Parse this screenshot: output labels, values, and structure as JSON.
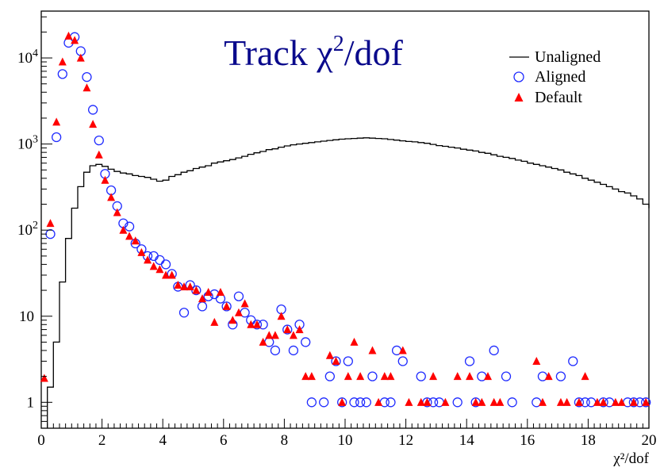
{
  "chart_data": {
    "type": "scatter",
    "title": "Track χ²/dof",
    "xlabel": "χ²/dof",
    "ylabel": "",
    "xlim": [
      0,
      20
    ],
    "ylim": [
      0.5,
      35000
    ],
    "y_scale": "log",
    "grid": false,
    "legend_position": "top-right",
    "x_ticks": [
      "0",
      "2",
      "4",
      "6",
      "8",
      "10",
      "12",
      "14",
      "16",
      "18",
      "20"
    ],
    "y_ticks": [
      {
        "value": 1,
        "base": "1",
        "exp": ""
      },
      {
        "value": 10,
        "base": "10",
        "exp": ""
      },
      {
        "value": 100,
        "base": "10",
        "exp": "2"
      },
      {
        "value": 1000,
        "base": "10",
        "exp": "3"
      },
      {
        "value": 10000,
        "base": "10",
        "exp": "4"
      }
    ],
    "colors": {
      "unaligned": "#000000",
      "aligned": "#1f2bff",
      "default": "#ff0000",
      "title": "#0a0a8c"
    },
    "series": [
      {
        "name": "Unaligned",
        "style": "histogram-line",
        "bin_width": 0.2,
        "edges_start": 0.2,
        "values": [
          1.5,
          5,
          25,
          80,
          180,
          320,
          470,
          560,
          580,
          550,
          510,
          480,
          460,
          450,
          430,
          420,
          410,
          390,
          370,
          380,
          420,
          440,
          470,
          490,
          520,
          540,
          560,
          600,
          620,
          640,
          660,
          690,
          720,
          760,
          790,
          820,
          860,
          880,
          920,
          950,
          980,
          1000,
          1020,
          1040,
          1060,
          1080,
          1100,
          1120,
          1140,
          1150,
          1160,
          1170,
          1180,
          1170,
          1160,
          1150,
          1130,
          1110,
          1090,
          1070,
          1060,
          1040,
          1020,
          990,
          960,
          940,
          920,
          900,
          870,
          850,
          830,
          800,
          780,
          750,
          720,
          700,
          680,
          650,
          630,
          600,
          580,
          560,
          540,
          520,
          500,
          470,
          450,
          430,
          400,
          380,
          360,
          340,
          320,
          300,
          280,
          270,
          250,
          230,
          200,
          180
        ]
      },
      {
        "name": "Aligned",
        "style": "open-circle",
        "points": [
          [
            0.3,
            90
          ],
          [
            0.5,
            1200
          ],
          [
            0.7,
            6500
          ],
          [
            0.9,
            15000
          ],
          [
            1.1,
            17500
          ],
          [
            1.3,
            12000
          ],
          [
            1.5,
            6000
          ],
          [
            1.7,
            2500
          ],
          [
            1.9,
            1100
          ],
          [
            2.1,
            450
          ],
          [
            2.3,
            290
          ],
          [
            2.5,
            190
          ],
          [
            2.7,
            120
          ],
          [
            2.9,
            110
          ],
          [
            3.1,
            70
          ],
          [
            3.3,
            60
          ],
          [
            3.5,
            50
          ],
          [
            3.7,
            50
          ],
          [
            3.9,
            45
          ],
          [
            4.1,
            40
          ],
          [
            4.3,
            31
          ],
          [
            4.5,
            22
          ],
          [
            4.7,
            11
          ],
          [
            4.9,
            23
          ],
          [
            5.1,
            20
          ],
          [
            5.3,
            13
          ],
          [
            5.5,
            17
          ],
          [
            5.7,
            18
          ],
          [
            5.9,
            16
          ],
          [
            6.1,
            13
          ],
          [
            6.3,
            8
          ],
          [
            6.5,
            17
          ],
          [
            6.7,
            11
          ],
          [
            6.9,
            9
          ],
          [
            7.1,
            8
          ],
          [
            7.3,
            8
          ],
          [
            7.5,
            5
          ],
          [
            7.7,
            4
          ],
          [
            7.9,
            12
          ],
          [
            8.1,
            7
          ],
          [
            8.3,
            4
          ],
          [
            8.5,
            8
          ],
          [
            8.7,
            5
          ],
          [
            8.9,
            1
          ],
          [
            9.3,
            1
          ],
          [
            9.5,
            2
          ],
          [
            9.7,
            3
          ],
          [
            9.9,
            1
          ],
          [
            10.1,
            3
          ],
          [
            10.3,
            1
          ],
          [
            10.5,
            1
          ],
          [
            10.7,
            1
          ],
          [
            10.9,
            2
          ],
          [
            11.3,
            1
          ],
          [
            11.5,
            1
          ],
          [
            11.7,
            4
          ],
          [
            11.9,
            3
          ],
          [
            12.5,
            2
          ],
          [
            12.7,
            1
          ],
          [
            12.9,
            1
          ],
          [
            13.1,
            1
          ],
          [
            13.7,
            1
          ],
          [
            14.1,
            3
          ],
          [
            14.3,
            1
          ],
          [
            14.5,
            2
          ],
          [
            14.9,
            4
          ],
          [
            15.3,
            2
          ],
          [
            15.5,
            1
          ],
          [
            16.3,
            1
          ],
          [
            16.5,
            2
          ],
          [
            17.1,
            2
          ],
          [
            17.5,
            3
          ],
          [
            17.7,
            1
          ],
          [
            17.9,
            1
          ],
          [
            18.1,
            1
          ],
          [
            18.5,
            1
          ],
          [
            18.7,
            1
          ],
          [
            19.3,
            1
          ],
          [
            19.5,
            1
          ],
          [
            19.7,
            1
          ],
          [
            19.9,
            1
          ]
        ]
      },
      {
        "name": "Default",
        "style": "filled-triangle",
        "points": [
          [
            0.1,
            1.9
          ],
          [
            0.3,
            120
          ],
          [
            0.5,
            1800
          ],
          [
            0.7,
            9000
          ],
          [
            0.9,
            18000
          ],
          [
            1.1,
            16000
          ],
          [
            1.3,
            10000
          ],
          [
            1.5,
            4500
          ],
          [
            1.7,
            1700
          ],
          [
            1.9,
            750
          ],
          [
            2.1,
            380
          ],
          [
            2.3,
            240
          ],
          [
            2.5,
            160
          ],
          [
            2.7,
            100
          ],
          [
            2.9,
            85
          ],
          [
            3.1,
            75
          ],
          [
            3.3,
            55
          ],
          [
            3.5,
            45
          ],
          [
            3.7,
            38
          ],
          [
            3.9,
            35
          ],
          [
            4.1,
            30
          ],
          [
            4.3,
            30
          ],
          [
            4.5,
            23
          ],
          [
            4.7,
            22
          ],
          [
            4.9,
            22
          ],
          [
            5.1,
            20
          ],
          [
            5.3,
            16
          ],
          [
            5.5,
            19
          ],
          [
            5.7,
            8.5
          ],
          [
            5.9,
            19
          ],
          [
            6.1,
            13
          ],
          [
            6.3,
            9
          ],
          [
            6.5,
            11
          ],
          [
            6.7,
            14
          ],
          [
            6.9,
            8
          ],
          [
            7.1,
            8
          ],
          [
            7.3,
            5
          ],
          [
            7.5,
            6
          ],
          [
            7.7,
            6
          ],
          [
            7.9,
            10
          ],
          [
            8.1,
            7
          ],
          [
            8.3,
            6
          ],
          [
            8.5,
            7
          ],
          [
            8.7,
            2
          ],
          [
            8.9,
            2
          ],
          [
            9.5,
            3.5
          ],
          [
            9.7,
            3
          ],
          [
            9.9,
            1
          ],
          [
            10.1,
            2
          ],
          [
            10.3,
            5
          ],
          [
            10.5,
            2
          ],
          [
            10.9,
            4
          ],
          [
            11.1,
            1
          ],
          [
            11.3,
            2
          ],
          [
            11.5,
            2
          ],
          [
            11.9,
            4
          ],
          [
            12.1,
            1
          ],
          [
            12.5,
            1
          ],
          [
            12.7,
            1
          ],
          [
            12.9,
            2
          ],
          [
            13.3,
            1
          ],
          [
            13.7,
            2
          ],
          [
            14.1,
            2
          ],
          [
            14.3,
            1
          ],
          [
            14.5,
            1
          ],
          [
            14.7,
            2
          ],
          [
            14.9,
            1
          ],
          [
            15.1,
            1
          ],
          [
            16.3,
            3
          ],
          [
            16.5,
            1
          ],
          [
            16.7,
            2
          ],
          [
            17.1,
            1
          ],
          [
            17.3,
            1
          ],
          [
            17.7,
            1
          ],
          [
            17.9,
            2
          ],
          [
            18.3,
            1
          ],
          [
            18.5,
            1
          ],
          [
            18.9,
            1
          ],
          [
            19.1,
            1
          ],
          [
            19.5,
            1
          ],
          [
            19.9,
            1
          ]
        ]
      }
    ]
  }
}
